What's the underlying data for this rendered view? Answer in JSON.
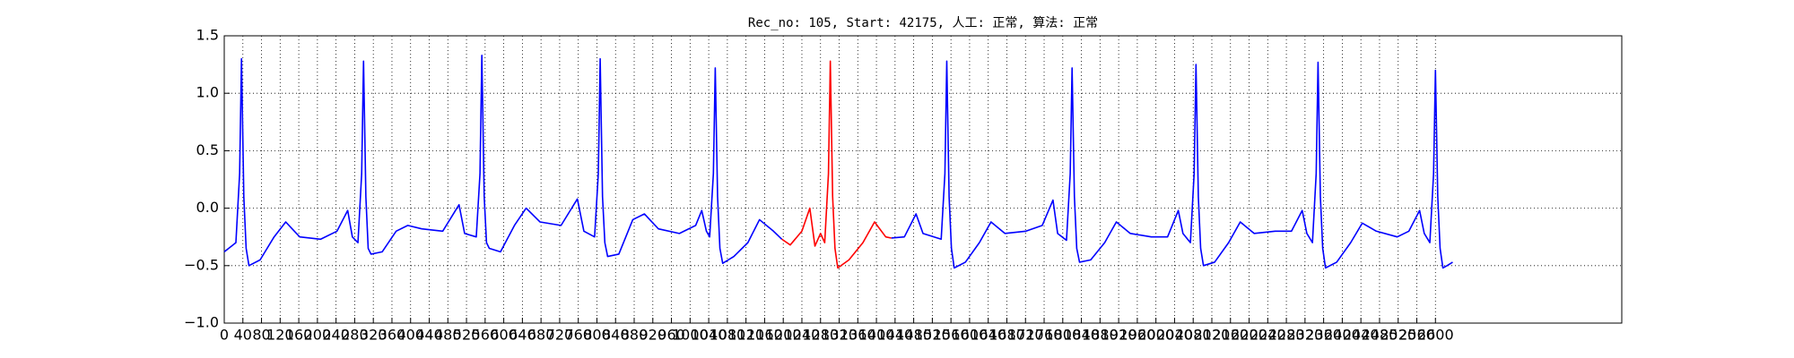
{
  "chart_data": {
    "type": "line",
    "title": "Rec_no: 105, Start: 42175, 人工: 正常, 算法: 正常",
    "xlim": [
      0,
      3000
    ],
    "ylim": [
      -1.0,
      1.5
    ],
    "xticks": [
      0,
      40,
      80,
      120,
      160,
      200,
      240,
      280,
      320,
      360,
      400,
      440,
      480,
      520,
      560,
      600,
      640,
      680,
      720,
      760,
      800,
      840,
      880,
      920,
      960,
      1000,
      1040,
      1080,
      1120,
      1160,
      1200,
      1240,
      1280,
      1320,
      1360,
      1400,
      1440,
      1480,
      1520,
      1560,
      1600,
      1640,
      1680,
      1720,
      1760,
      1800,
      1840,
      1880,
      1920,
      1960,
      2000,
      2040,
      2080,
      2120,
      2160,
      2200,
      2240,
      2280,
      2320,
      2360,
      2400,
      2440,
      2480,
      2520,
      2560,
      2600
    ],
    "yticks": [
      {
        "value": 1.5,
        "label": "1.5"
      },
      {
        "value": 1.0,
        "label": "1.0"
      },
      {
        "value": 0.5,
        "label": "0.5"
      },
      {
        "value": 0.0,
        "label": "0.0"
      },
      {
        "value": -0.5,
        "label": "−0.5"
      },
      {
        "value": -1.0,
        "label": "−1.0"
      }
    ],
    "grid": true,
    "series": [
      {
        "color": "#0000ff",
        "x": [
          0,
          25,
          33,
          37,
          42,
          47,
          53,
          77,
          107,
          132,
          162,
          207,
          242,
          265,
          275,
          287,
          295,
          299,
          304,
          309,
          315,
          339,
          369,
          394,
          424,
          469,
          504,
          516,
          541,
          549,
          553,
          558,
          563,
          569,
          593,
          623,
          648,
          678,
          723,
          758,
          772,
          795,
          803,
          807,
          812,
          817,
          823,
          847,
          877,
          902,
          932,
          977,
          1012,
          1025,
          1035,
          1042,
          1050,
          1054,
          1059,
          1064,
          1070,
          1094,
          1124,
          1149,
          1179,
          1197,
          1300,
          1432,
          1460,
          1485,
          1500,
          1539,
          1547,
          1551,
          1556,
          1561,
          1567,
          1591,
          1621,
          1646,
          1676,
          1721,
          1756,
          1779,
          1789,
          1808,
          1816,
          1820,
          1825,
          1830,
          1836,
          1860,
          1890,
          1915,
          1945,
          1990,
          2025,
          2048,
          2058,
          2074,
          2082,
          2086,
          2091,
          2096,
          2102,
          2126,
          2156,
          2181,
          2211,
          2256,
          2291,
          2314,
          2324,
          2336,
          2344,
          2348,
          2353,
          2358,
          2364,
          2388,
          2418,
          2443,
          2473,
          2518,
          2543,
          2566,
          2576,
          2588,
          2596,
          2600,
          2605,
          2610,
          2616,
          2625,
          2637
        ],
        "values": [
          -0.38,
          -0.3,
          0.3,
          1.3,
          0.1,
          -0.35,
          -0.5,
          -0.45,
          -0.25,
          -0.12,
          -0.25,
          -0.27,
          -0.2,
          -0.02,
          -0.25,
          -0.3,
          0.3,
          1.28,
          0.1,
          -0.35,
          -0.4,
          -0.38,
          -0.2,
          -0.15,
          -0.18,
          -0.2,
          0.03,
          -0.22,
          -0.25,
          0.3,
          1.33,
          0.1,
          -0.3,
          -0.35,
          -0.38,
          -0.15,
          0.0,
          -0.12,
          -0.15,
          0.08,
          -0.2,
          -0.25,
          0.3,
          1.3,
          0.1,
          -0.3,
          -0.42,
          -0.4,
          -0.1,
          -0.05,
          -0.18,
          -0.22,
          -0.15,
          -0.02,
          -0.2,
          -0.25,
          0.3,
          1.22,
          0.1,
          -0.35,
          -0.48,
          -0.42,
          -0.3,
          -0.1,
          -0.2,
          -0.27,
          null,
          -0.26,
          -0.25,
          -0.05,
          -0.22,
          -0.27,
          0.3,
          1.28,
          0.1,
          -0.35,
          -0.52,
          -0.47,
          -0.3,
          -0.12,
          -0.22,
          -0.2,
          -0.15,
          0.07,
          -0.22,
          -0.28,
          0.3,
          1.22,
          0.1,
          -0.35,
          -0.47,
          -0.45,
          -0.3,
          -0.12,
          -0.22,
          -0.25,
          -0.25,
          -0.02,
          -0.22,
          -0.3,
          0.3,
          1.25,
          0.1,
          -0.35,
          -0.5,
          -0.47,
          -0.3,
          -0.12,
          -0.22,
          -0.2,
          -0.2,
          -0.02,
          -0.22,
          -0.3,
          0.3,
          1.27,
          0.1,
          -0.35,
          -0.52,
          -0.47,
          -0.3,
          -0.13,
          -0.2,
          -0.25,
          -0.2,
          -0.02,
          -0.22,
          -0.3,
          0.3,
          1.2,
          0.1,
          -0.35,
          -0.52,
          -0.5,
          -0.47
        ]
      },
      {
        "color": "#ff0000",
        "x": [
          1197,
          1215,
          1240,
          1257,
          1268,
          1280,
          1289,
          1297,
          1301,
          1306,
          1311,
          1317,
          1341,
          1371,
          1396,
          1420,
          1432
        ],
        "values": [
          -0.27,
          -0.32,
          -0.2,
          0.0,
          -0.33,
          -0.22,
          -0.3,
          0.3,
          1.28,
          0.1,
          -0.35,
          -0.52,
          -0.45,
          -0.3,
          -0.12,
          -0.25,
          -0.26
        ]
      }
    ]
  }
}
